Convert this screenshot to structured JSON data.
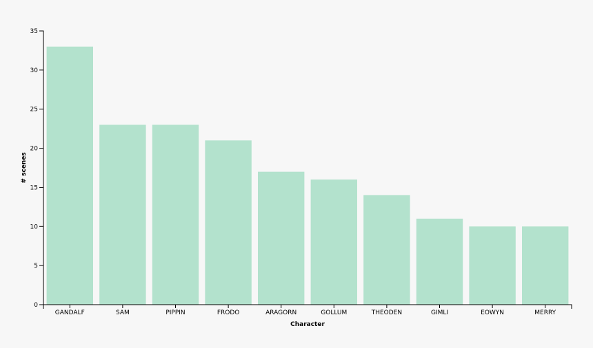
{
  "chart_data": {
    "type": "bar",
    "x_label": "Character",
    "y_label": "# scenes",
    "categories": [
      "GANDALF",
      "SAM",
      "PIPPIN",
      "FRODO",
      "ARAGORN",
      "GOLLUM",
      "THEODEN",
      "GIMLI",
      "EOWYN",
      "MERRY"
    ],
    "values": [
      33,
      23,
      23,
      21,
      17,
      16,
      14,
      11,
      10,
      10
    ],
    "color": "#b3e2cd",
    "ylim": [
      0,
      35
    ],
    "yticks": [
      0,
      5,
      10,
      15,
      20,
      25,
      30,
      35
    ]
  }
}
